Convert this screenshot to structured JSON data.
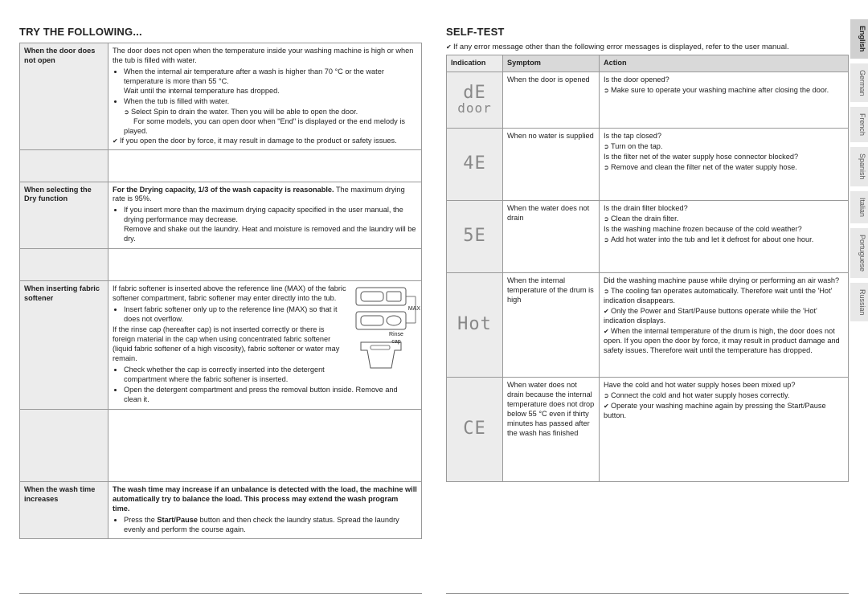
{
  "left": {
    "title": "TRY THE FOLLOWING...",
    "rows": [
      {
        "issue": "When the door does not open",
        "mainText": "The door does not open when the temperature inside your washing machine is high or when the tub is filled with water.",
        "bullets": [
          "When the internal air temperature after a wash is higher than 70 °C or the water temperature is more than 55 °C.",
          "When the tub is filled with water."
        ],
        "afterB1": "Wait until the internal temperature has dropped.",
        "arrow": "Select Spin to drain the water. Then you will be able to open the door.",
        "arrowSub": "For some models, you can open door when \"End\" is displayed or the end melody is played.",
        "check": "If you open the door by force, it may result in damage to the product or safety issues."
      },
      {
        "issue": "When selecting the Dry function",
        "boldLead": "For the Drying capacity, 1/3 of the wash capacity is reasonable.",
        "leadTail": " The maximum drying rate is 95%.",
        "bullets": [
          "If you insert more than the maximum drying capacity specified in the user manual, the drying performance may decrease."
        ],
        "afterBul": "Remove and shake out the laundry. Heat and moisture is removed and the laundry will be dry."
      },
      {
        "issue": "When inserting fabric softener",
        "mainText": "If fabric softener is inserted above the reference line (MAX) of the fabric softener compartment, fabric softener may enter directly into the tub.",
        "bullets": [
          "Insert fabric softener only up to the reference line (MAX) so that it does not overflow."
        ],
        "para2": "If the rinse cap (hereafter cap) is not inserted correctly or there is foreign material in the cap when using concentrated fabric softener (liquid fabric softener of a high viscosity), fabric softener or water may remain.",
        "bullets2": [
          "Check whether the cap is correctly inserted into the detergent compartment where the fabric softener is inserted.",
          "Open the detergent compartment and press the removal button inside. Remove and clean it."
        ],
        "diagLabelMax": "MAX",
        "diagLabelRinse": "Rinse cap"
      },
      {
        "issue": "When the wash time increases",
        "boldLead": "The wash time may increase if an unbalance is detected with the load, the machine will automatically try to balance the load. This process may extend the wash program time.",
        "bullets": [
          "Press the Start/Pause button and then check the laundry status. Spread the laundry evenly and perform the course again."
        ],
        "startPause": "Start/Pause"
      }
    ]
  },
  "right": {
    "title": "SELF-TEST",
    "intro": "If any error message other than the following error messages is displayed, refer to the user manual.",
    "headers": {
      "ind": "Indication",
      "sym": "Symptom",
      "act": "Action"
    },
    "rows": [
      {
        "seg1": "dE",
        "seg2": "door",
        "symptom": "When the door is opened",
        "q": "Is the door opened?",
        "arrow": "Make sure to operate your washing machine after closing the door."
      },
      {
        "seg1": "4E",
        "symptom": "When no water is supplied",
        "q": "Is the tap closed?",
        "arrow": "Turn on the tap.",
        "q2": "Is the filter net of the water supply hose connector blocked?",
        "arrow2": "Remove and clean the filter net of the water supply hose."
      },
      {
        "seg1": "5E",
        "symptom": "When the water does not drain",
        "q": "Is the drain filter blocked?",
        "arrow": "Clean the drain filter.",
        "q2": "Is the washing machine frozen because of the cold weather?",
        "arrow2": "Add hot water into the tub and let it defrost for about one hour."
      },
      {
        "seg1": "Hot",
        "symptom": "When the internal temperature of the drum is high",
        "q": "Did the washing machine pause while drying or performing an air wash?",
        "arrow": "The cooling fan operates automatically. Therefore wait until the 'Hot' indication disappears.",
        "check": "Only the Power and Start/Pause buttons operate while the 'Hot' indication displays.",
        "check2": "When the internal temperature of the drum is high, the door does not open. If you open the door by force, it may result in product damage and safety issues. Therefore wait until the temperature has dropped."
      },
      {
        "seg1": "CE",
        "symptom": "When water does not drain because the internal temperature does not drop below 55 °C even if thirty minutes has passed after the wash has finished",
        "q": "Have the cold and hot water supply hoses been mixed up?",
        "arrow": "Connect the cold and hot water supply hoses correctly.",
        "check": "Operate your washing machine again by pressing the Start/Pause button."
      }
    ]
  },
  "languages": [
    "English",
    "German",
    "French",
    "Spanish",
    "Italian",
    "Portuguese",
    "Russian"
  ],
  "activeLang": 0
}
